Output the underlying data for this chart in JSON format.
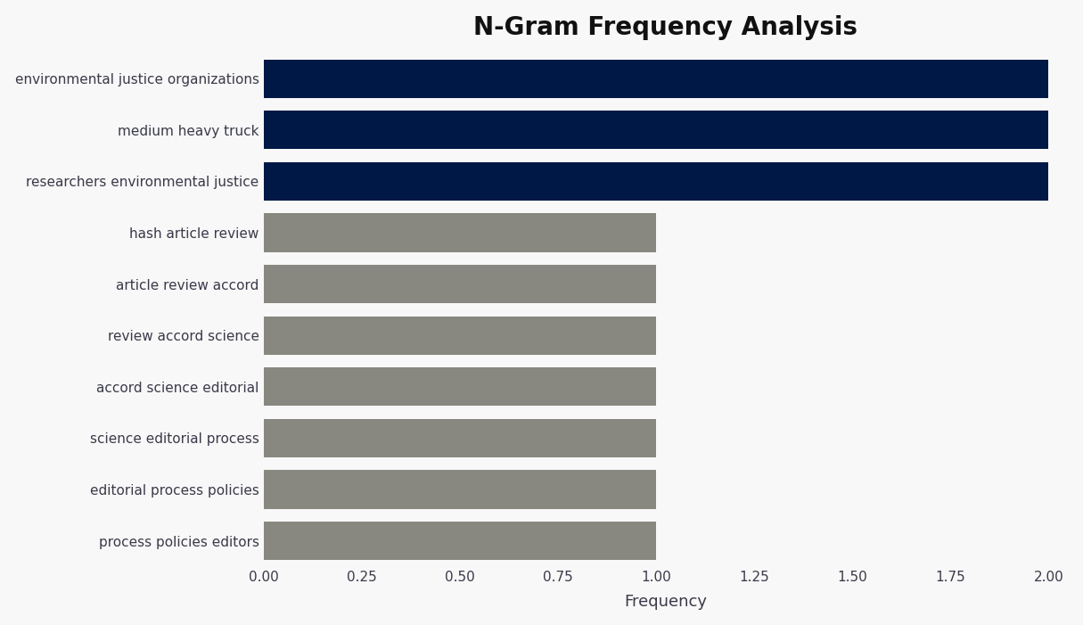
{
  "title": "N-Gram Frequency Analysis",
  "categories": [
    "process policies editors",
    "editorial process policies",
    "science editorial process",
    "accord science editorial",
    "review accord science",
    "article review accord",
    "hash article review",
    "researchers environmental justice",
    "medium heavy truck",
    "environmental justice organizations"
  ],
  "values": [
    1,
    1,
    1,
    1,
    1,
    1,
    1,
    2,
    2,
    2
  ],
  "colors": [
    "#888880",
    "#888880",
    "#888880",
    "#888880",
    "#888880",
    "#888880",
    "#888880",
    "#001845",
    "#001845",
    "#001845"
  ],
  "xlabel": "Frequency",
  "xlim": [
    0,
    2.05
  ],
  "xticks": [
    0.0,
    0.25,
    0.5,
    0.75,
    1.0,
    1.25,
    1.5,
    1.75,
    2.0
  ],
  "xtick_labels": [
    "0.00",
    "0.25",
    "0.50",
    "0.75",
    "1.00",
    "1.25",
    "1.50",
    "1.75",
    "2.00"
  ],
  "background_color": "#f8f8f8",
  "title_fontsize": 20,
  "label_fontsize": 11,
  "xlabel_fontsize": 13,
  "tick_fontsize": 11,
  "bar_height": 0.75
}
